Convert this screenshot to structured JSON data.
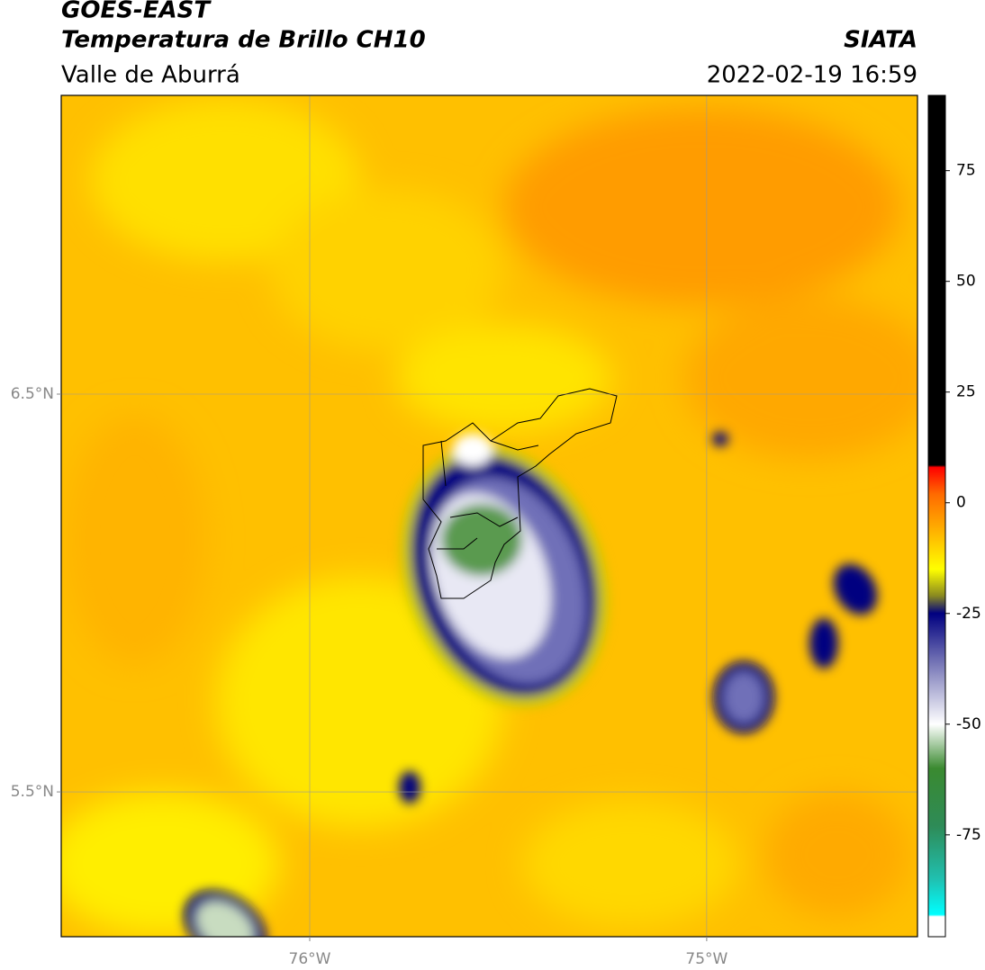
{
  "title": "GOES-EAST",
  "subtitle": "Temperatura de Brillo CH10",
  "region": "Valle de Aburrá",
  "source": "SIATA",
  "datetime": "2022-02-19 16:59",
  "map": {
    "xlim": [
      -76.626,
      -74.469
    ],
    "ylim": [
      5.136,
      7.251
    ],
    "xticks": [
      {
        "value": -76,
        "label": "76°W"
      },
      {
        "value": -75,
        "label": "75°W"
      }
    ],
    "yticks": [
      {
        "value": 6.5,
        "label": "6.5°N"
      },
      {
        "value": 5.5,
        "label": "5.5°N"
      }
    ],
    "grid": true
  },
  "colorbar": {
    "clim": [
      -98,
      92
    ],
    "ticks": [
      75,
      50,
      25,
      0,
      -25,
      -50,
      -75
    ],
    "stops": [
      {
        "value": 92,
        "color": "#000000"
      },
      {
        "value": 8.5,
        "color": "#000000"
      },
      {
        "value": 8,
        "color": "#ff0000"
      },
      {
        "value": 2,
        "color": "#ff6a00"
      },
      {
        "value": -8,
        "color": "#ffc000"
      },
      {
        "value": -15,
        "color": "#ffff00"
      },
      {
        "value": -21,
        "color": "#8a8a20"
      },
      {
        "value": -25,
        "color": "#000080"
      },
      {
        "value": -35,
        "color": "#6a6ab0"
      },
      {
        "value": -50,
        "color": "#ffffff"
      },
      {
        "value": -60,
        "color": "#3a8a30"
      },
      {
        "value": -73,
        "color": "#2e8b57"
      },
      {
        "value": -85,
        "color": "#20c0b0"
      },
      {
        "value": -93,
        "color": "#00ffff"
      },
      {
        "value": -93.5,
        "color": "#ffffff"
      },
      {
        "value": -98,
        "color": "#ffffff"
      }
    ]
  }
}
